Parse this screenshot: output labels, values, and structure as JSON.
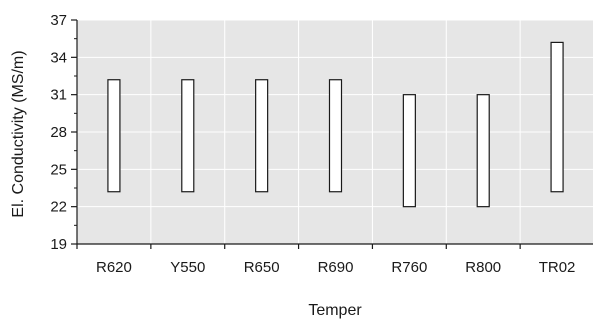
{
  "chart_data": {
    "type": "bar",
    "subtype": "floating-range",
    "xlabel": "Temper",
    "ylabel": "El. Conductivity (MS/m)",
    "ylim": [
      19,
      37
    ],
    "yticks": [
      19,
      22,
      25,
      28,
      31,
      34,
      37
    ],
    "grid": true,
    "categories": [
      "R620",
      "Y550",
      "R650",
      "R690",
      "R760",
      "R800",
      "TR02"
    ],
    "ranges": [
      {
        "low": 23.2,
        "high": 32.2
      },
      {
        "low": 23.2,
        "high": 32.2
      },
      {
        "low": 23.2,
        "high": 32.2
      },
      {
        "low": 23.2,
        "high": 32.2
      },
      {
        "low": 22.0,
        "high": 31.0
      },
      {
        "low": 22.0,
        "high": 31.0
      },
      {
        "low": 23.2,
        "high": 35.2
      }
    ],
    "colors": {
      "plot_background": "#e6e6e6",
      "grid": "#ffffff",
      "bar_fill": "#ffffff",
      "bar_stroke": "#1a1a1a",
      "axis": "#1a1a1a"
    }
  }
}
